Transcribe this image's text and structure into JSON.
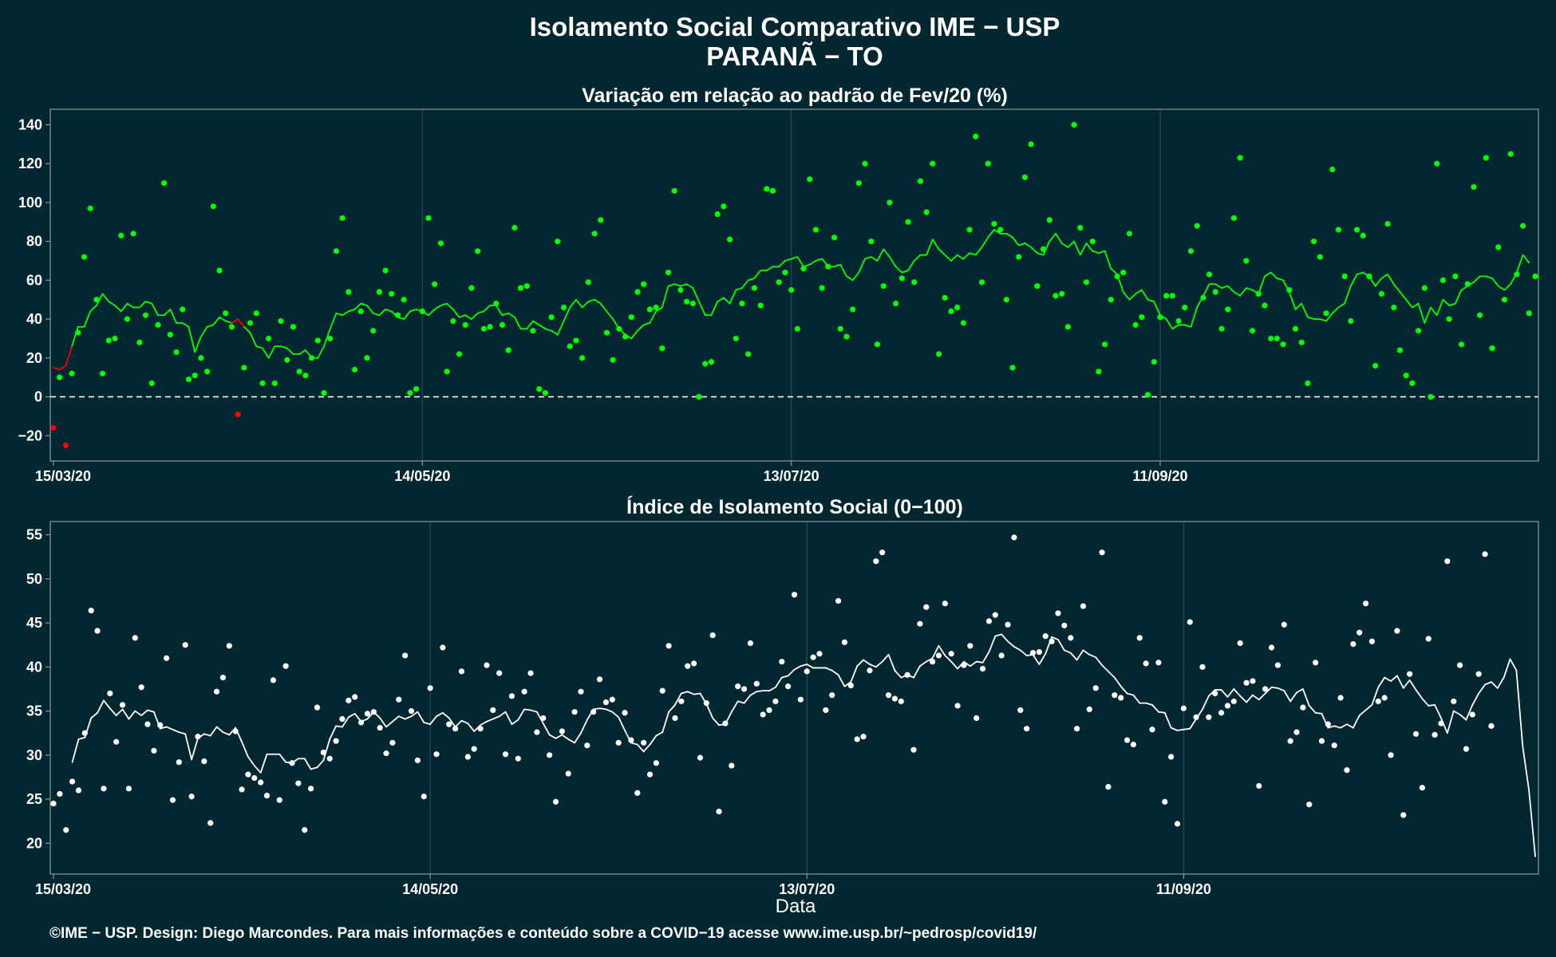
{
  "title": "Isolamento Social Comparativo IME − USP",
  "subtitle": "PARANÃ − TO",
  "footer": "©IME − USP. Design: Diego Marcondes. Para mais informações e conteúdo sobre a COVID−19 acesse www.ime.usp.br/~pedrosp/covid19/",
  "xlabel": "Data",
  "colors": {
    "background": "#022731",
    "positive": "#00ff00",
    "negative": "#ff0000",
    "index": "#ffffff",
    "zero_line": "#ffffff"
  },
  "chart_data": [
    {
      "type": "scatter",
      "title": "Variação em relação ao padrão de Fev/20 (%)",
      "start_date": "2020-03-15",
      "x_ticks": [
        "15/03/20",
        "14/05/20",
        "13/07/20",
        "11/09/20"
      ],
      "x_tick_days": [
        0,
        60,
        120,
        180
      ],
      "ylim": [
        -33,
        148
      ],
      "y_ticks": [
        -20,
        0,
        20,
        40,
        60,
        80,
        100,
        120,
        140
      ],
      "reference_line": 0,
      "grid": "vertical",
      "series": [
        {
          "kind": "points",
          "values": [
            -16,
            10,
            -25,
            12,
            33,
            72,
            97,
            50,
            12,
            29,
            30,
            83,
            40,
            84,
            28,
            42,
            7,
            37,
            110,
            32,
            23,
            45,
            9,
            11,
            20,
            13,
            98,
            65,
            43,
            36,
            -9,
            15,
            38,
            43,
            7,
            30,
            7,
            39,
            19,
            36,
            13,
            11,
            20,
            29,
            2,
            30,
            75,
            92,
            54,
            14,
            44,
            20,
            34,
            54,
            65,
            53,
            42,
            50,
            2,
            4,
            44,
            92,
            58,
            79,
            13,
            39,
            22,
            37,
            56,
            75,
            35,
            36,
            48,
            37,
            24,
            87,
            56,
            57,
            34,
            4,
            2,
            41,
            80,
            46,
            26,
            29,
            20,
            59,
            84,
            91,
            33,
            19,
            35,
            31,
            41,
            54,
            58,
            45,
            46,
            25,
            64,
            106,
            55,
            49,
            48,
            0,
            17,
            18,
            94,
            98,
            81,
            30,
            48,
            22,
            56,
            47,
            107,
            106,
            59,
            64,
            55,
            35,
            66,
            112,
            86,
            56,
            67,
            82,
            35,
            31,
            45,
            110,
            120,
            80,
            27,
            57,
            100,
            48,
            61,
            90,
            59,
            111,
            95,
            120,
            22,
            51,
            44,
            46,
            38,
            86,
            134,
            59,
            120,
            89,
            86,
            50,
            15,
            72,
            113,
            130,
            57,
            76,
            91,
            52,
            53,
            36,
            140,
            87,
            59,
            80,
            13,
            27,
            50,
            62,
            64,
            84,
            37,
            41,
            1,
            18,
            41,
            52,
            52,
            39,
            46,
            75,
            88,
            51,
            63,
            54,
            35,
            45,
            92,
            123,
            70,
            34,
            53,
            47,
            30,
            30,
            27,
            55,
            35,
            28,
            7,
            80,
            72,
            43,
            117,
            86,
            62,
            39,
            86,
            83,
            62,
            16,
            53,
            89,
            46,
            24,
            11,
            7,
            34,
            56,
            0,
            120,
            60,
            40,
            62,
            27,
            58,
            108,
            42,
            123,
            25,
            77,
            50,
            125,
            63,
            88,
            43,
            62
          ]
        },
        {
          "kind": "moving_average",
          "values": [
            15,
            14,
            16,
            26,
            36,
            36,
            44,
            47,
            53,
            49,
            47,
            44,
            48,
            46,
            46,
            49,
            48,
            42,
            42,
            45,
            38,
            38,
            36,
            23,
            31,
            36,
            37,
            41,
            39,
            38,
            40,
            36,
            33,
            26,
            25,
            20,
            26,
            26,
            25,
            22,
            22,
            24,
            20,
            20,
            26,
            35,
            43,
            42,
            44,
            45,
            48,
            47,
            43,
            42,
            45,
            44,
            41,
            40,
            44,
            45,
            44,
            42,
            45,
            47,
            48,
            45,
            41,
            42,
            40,
            43,
            44,
            47,
            47,
            42,
            43,
            41,
            35,
            35,
            39,
            37,
            35,
            34,
            32,
            39,
            46,
            50,
            46,
            49,
            50,
            48,
            44,
            40,
            35,
            32,
            30,
            34,
            37,
            38,
            44,
            46,
            57,
            58,
            57,
            58,
            56,
            49,
            42,
            42,
            49,
            51,
            48,
            55,
            56,
            60,
            61,
            65,
            65,
            67,
            67,
            70,
            71,
            72,
            67,
            68,
            70,
            71,
            67,
            67,
            68,
            62,
            60,
            64,
            71,
            72,
            70,
            76,
            72,
            67,
            64,
            65,
            70,
            73,
            73,
            81,
            76,
            73,
            70,
            73,
            71,
            74,
            73,
            77,
            82,
            86,
            84,
            84,
            82,
            78,
            79,
            77,
            74,
            73,
            80,
            84,
            79,
            77,
            80,
            73,
            79,
            75,
            74,
            75,
            66,
            63,
            54,
            50,
            53,
            55,
            50,
            49,
            42,
            40,
            35,
            37,
            37,
            36,
            46,
            52,
            58,
            58,
            56,
            57,
            54,
            52,
            56,
            55,
            53,
            62,
            64,
            61,
            60,
            54,
            45,
            48,
            41,
            40,
            40,
            39,
            43,
            46,
            48,
            57,
            63,
            64,
            62,
            57,
            61,
            63,
            58,
            54,
            50,
            46,
            48,
            38,
            46,
            42,
            50,
            47,
            48,
            55,
            57,
            59,
            62,
            62,
            61,
            57,
            55,
            58,
            64,
            73,
            69
          ]
        }
      ]
    },
    {
      "type": "scatter",
      "title": "Índice de Isolamento Social (0−100)",
      "start_date": "2020-03-15",
      "x_ticks": [
        "15/03/20",
        "14/05/20",
        "13/07/20",
        "11/09/20"
      ],
      "x_tick_days": [
        0,
        60,
        120,
        180
      ],
      "ylim": [
        16.5,
        56.5
      ],
      "y_ticks": [
        20,
        25,
        30,
        35,
        40,
        45,
        50,
        55
      ],
      "grid": "vertical",
      "series": [
        {
          "kind": "points",
          "values": [
            24.5,
            25.6,
            21.5,
            27,
            26,
            32.5,
            46.4,
            44.1,
            26.2,
            37,
            31.5,
            35.7,
            26.2,
            43.3,
            37.7,
            33.5,
            30.5,
            33.4,
            41,
            24.9,
            29.2,
            42.5,
            25.3,
            32.1,
            29.3,
            22.3,
            37.2,
            38.8,
            42.4,
            32.7,
            26.1,
            27.8,
            27.4,
            26.9,
            25.4,
            38.5,
            24.9,
            40.1,
            29.1,
            26.8,
            21.5,
            26.2,
            35.4,
            30.3,
            29.6,
            31.6,
            34.1,
            36.2,
            36.6,
            33.7,
            34.7,
            34.9,
            33.1,
            30.2,
            31.4,
            36.3,
            41.3,
            35,
            29.4,
            25.3,
            37.6,
            30.1,
            42.2,
            33.5,
            33,
            39.5,
            29.8,
            30.7,
            33,
            40.2,
            35.1,
            39.3,
            30.1,
            36.7,
            29.6,
            37.2,
            39.3,
            32.6,
            34.2,
            30,
            24.7,
            32.7,
            27.9,
            34.9,
            37.2,
            31.1,
            34.9,
            38.6,
            36,
            36.3,
            31.4,
            34.8,
            31.7,
            25.7,
            31.4,
            27.8,
            29.1,
            37.3,
            42.4,
            34.2,
            36.1,
            40.1,
            40.4,
            29.7,
            35.9,
            43.6,
            23.6,
            33.6,
            28.8,
            37.8,
            37.5,
            42.7,
            38.1,
            34.6,
            35.1,
            36.1,
            40.6,
            37.8,
            48.2,
            36.3,
            39.5,
            41.1,
            41.5,
            35.1,
            36.8,
            47.5,
            42.8,
            37.9,
            31.8,
            32.1,
            39.6,
            52,
            53,
            36.8,
            36.4,
            36.1,
            39.1,
            30.6,
            44.9,
            46.8,
            40.6,
            41.3,
            47.2,
            41.5,
            35.6,
            40.2,
            42.4,
            34.2,
            39.8,
            45.2,
            45.9,
            41.3,
            44.8,
            54.7,
            35.1,
            33,
            41.6,
            41.7,
            43.5,
            42.9,
            46.1,
            44.7,
            43.3,
            33,
            46.9,
            35.2,
            37.6,
            53,
            26.4,
            36.8,
            36.5,
            31.7,
            31.2,
            43.3,
            40.4,
            32.9,
            40.5,
            24.7,
            29.8,
            22.2,
            35.3,
            45.1,
            34.3,
            40,
            34.3,
            37,
            34.8,
            35.6,
            36.1,
            42.7,
            38.2,
            38.4,
            26.5,
            37.5,
            42.2,
            40.2,
            44.8,
            31.6,
            32.6,
            35.4,
            24.4,
            40.5,
            31.6,
            33.5,
            31.1,
            36.5,
            28.3,
            42.6,
            43.9,
            47.2,
            42.9,
            36.1,
            36.5,
            30,
            44.1,
            23.2,
            39.2,
            32.4,
            26.3,
            43.2,
            32.3,
            33.6,
            52,
            36.1,
            40.2,
            30.7,
            34.6,
            39.2,
            52.8,
            33.3
          ]
        },
        {
          "kind": "moving_average",
          "values": [
            null,
            null,
            null,
            29.2,
            31.8,
            32,
            34.2,
            34.8,
            36.2,
            35.3,
            34.5,
            35.2,
            34.1,
            35,
            34.5,
            35.1,
            34.9,
            33,
            33.2,
            32.9,
            32.6,
            32.4,
            29.5,
            31.9,
            32.4,
            32.2,
            33.2,
            32.6,
            32.3,
            33.1,
            31.5,
            29.8,
            28.8,
            28,
            30.1,
            30.1,
            30.1,
            29.2,
            29.1,
            29.6,
            29.6,
            28.4,
            28.6,
            29.4,
            31.8,
            33.3,
            33.2,
            34.3,
            34.7,
            33.8,
            34.1,
            34.9,
            34.2,
            33.2,
            33.8,
            34.4,
            34.1,
            34.4,
            34.9,
            33.7,
            33.5,
            34.4,
            34.8,
            34.2,
            33.2,
            33.9,
            33.6,
            32.7,
            33.4,
            33.8,
            34.1,
            34.4,
            34.9,
            33.5,
            34,
            35.2,
            35.1,
            34.9,
            33.6,
            32.3,
            31.9,
            32.3,
            31.8,
            31.4,
            32.5,
            34,
            35.2,
            35.3,
            35.2,
            34.9,
            34.3,
            32.8,
            31.4,
            31.2,
            30.4,
            31.2,
            32.2,
            32.6,
            34.9,
            35.7,
            37,
            37.2,
            36.9,
            37,
            35.8,
            34.2,
            33.4,
            33.5,
            34.9,
            36.1,
            35.9,
            36.8,
            37.2,
            37.3,
            37.3,
            37.7,
            38.8,
            39,
            39.7,
            40.1,
            40.3,
            39.9,
            39.9,
            39.9,
            39.6,
            39.1,
            37.8,
            38.3,
            40.1,
            40.8,
            40.3,
            40,
            40.6,
            41.4,
            39.6,
            38.8,
            39.1,
            38.8,
            40.1,
            40.6,
            41,
            42.4,
            41.3,
            40.6,
            39.8,
            40.6,
            40.1,
            40.6,
            40.5,
            41.7,
            43.5,
            43.7,
            42.9,
            42.3,
            41.9,
            41.3,
            41.4,
            40.3,
            41.5,
            43.4,
            43.1,
            41.9,
            41.6,
            40.8,
            41.9,
            41.4,
            41.1,
            40.2,
            39.5,
            38.8,
            37.8,
            37,
            36.8,
            35.9,
            35.9,
            35.7,
            34.9,
            34.8,
            33.1,
            32.8,
            32.9,
            33,
            34.1,
            35.2,
            36.7,
            37.4,
            37.4,
            36.6,
            37.5,
            36.7,
            36,
            36.8,
            36.3,
            37,
            37.7,
            37.6,
            37.3,
            36.1,
            37.1,
            37.5,
            35.6,
            34.8,
            34.7,
            33.1,
            33.3,
            33.1,
            33.5,
            33.1,
            34.5,
            35.1,
            35.7,
            37.7,
            38.8,
            38.4,
            39,
            37.6,
            38.5,
            37.4,
            36.4,
            35.6,
            35.7,
            34.2,
            32.5,
            35,
            34.6,
            34,
            35.7,
            37,
            38,
            38.3,
            37.6,
            38.8,
            40.9,
            39.6,
            31,
            26,
            18.5
          ]
        }
      ]
    }
  ]
}
